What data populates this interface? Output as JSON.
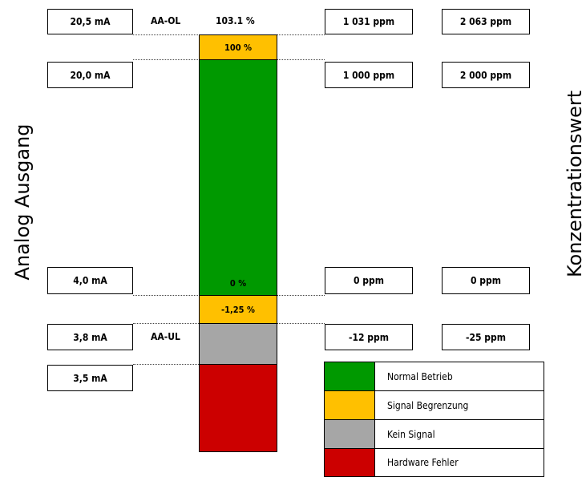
{
  "side_labels": {
    "left": "Analog Ausgang",
    "right": "Konzentrationswert"
  },
  "rows": {
    "r1": {
      "ma": "20,5 mA",
      "tag": "AA-OL",
      "pct": "103.1 %",
      "ppm1": "1 031 ppm",
      "ppm2": "2 063 ppm"
    },
    "r2": {
      "ma": "20,0 mA",
      "ppm1": "1 000 ppm",
      "ppm2": "2 000 ppm"
    },
    "r3": {
      "ma": "4,0 mA",
      "ppm1": "0 ppm",
      "ppm2": "0 ppm"
    },
    "r4": {
      "ma": "3,8 mA",
      "tag": "AA-UL",
      "ppm1": "-12 ppm",
      "ppm2": "-25 ppm"
    },
    "r5": {
      "ma": "3,5 mA"
    }
  },
  "bar": {
    "limit_high_label": "100 %",
    "normal_label": "0 %",
    "limit_low_label": "-1,25 %"
  },
  "legend": [
    {
      "label": "Normal Betrieb",
      "color": "#009900"
    },
    {
      "label": "Signal Begrenzung",
      "color": "#ffc000"
    },
    {
      "label": "Kein Signal",
      "color": "#a6a6a6"
    },
    {
      "label": "Hardware Fehler",
      "color": "#cc0000"
    }
  ],
  "colors": {
    "normal": "#009900",
    "limit": "#ffc000",
    "nosignal": "#a6a6a6",
    "fault": "#cc0000"
  }
}
